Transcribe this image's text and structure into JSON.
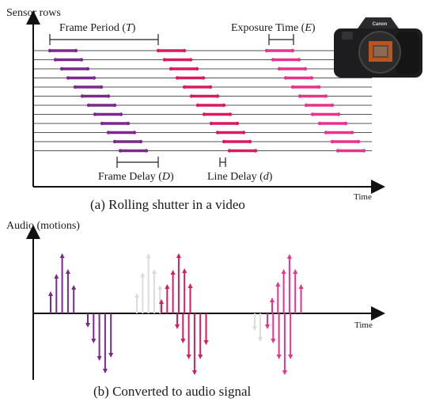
{
  "top_panel": {
    "y_axis_label": "Sensor rows",
    "x_axis_label": "Time",
    "caption": "(a) Rolling shutter in a video",
    "annotations": {
      "frame_period": "Frame Period (",
      "frame_period_sym": "T",
      "exposure_time": "Exposure Time (",
      "exposure_time_sym": "E",
      "frame_delay": "Frame Delay (",
      "frame_delay_sym": "D",
      "line_delay": "Line Delay (",
      "line_delay_sym": "d",
      "close_paren": ")"
    },
    "camera_brand": "Canon"
  },
  "bottom_panel": {
    "y_axis_label": "Audio (motions)",
    "x_axis_label": "Time",
    "caption": "(b) Converted to audio signal"
  },
  "colors": {
    "frame1": "#7a2a8a",
    "frame2": "#d81b60",
    "frame3": "#e8338a",
    "faded": "#dcdcdc",
    "line": "#555555",
    "axis": "#111111"
  },
  "rolling_shutter": {
    "rows": 12,
    "frames": 3,
    "row_start": [
      [
        63,
        70,
        78,
        86,
        95,
        104,
        112,
        120,
        129,
        137,
        145,
        152
      ],
      [
        200,
        208,
        216,
        224,
        233,
        242,
        250,
        258,
        267,
        275,
        283,
        290
      ],
      [
        337,
        345,
        353,
        361,
        370,
        379,
        387,
        395,
        404,
        412,
        420,
        427
      ]
    ],
    "exposure_width": 33
  },
  "audio_signal": {
    "positive_pulses": [
      {
        "frame": 1,
        "heights": [
          28,
          50,
          76,
          56,
          36
        ]
      },
      {
        "frame": "faded",
        "heights": [
          26,
          52,
          76,
          56,
          36
        ]
      },
      {
        "frame": 2,
        "heights": [
          18,
          37,
          55,
          76,
          57,
          38
        ]
      },
      {
        "frame": 3,
        "heights": [
          20,
          40,
          56,
          75,
          56,
          37
        ]
      }
    ],
    "negative_pulses": [
      {
        "frame": 1,
        "heights": [
          18,
          38,
          60,
          76,
          56
        ]
      },
      {
        "frame": "faded",
        "heights": []
      },
      {
        "frame": 2,
        "heights": [
          20,
          38,
          58,
          78,
          58,
          40
        ]
      },
      {
        "frame": 3,
        "heights": [
          20,
          38,
          58,
          78,
          58
        ]
      }
    ]
  }
}
